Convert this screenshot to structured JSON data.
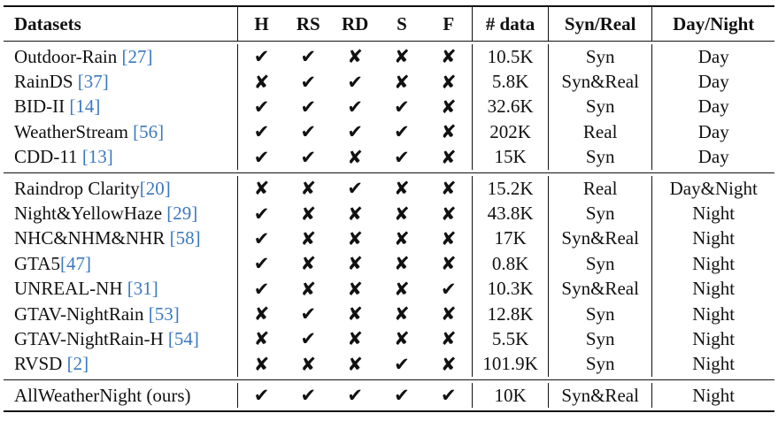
{
  "table": {
    "headers": [
      "Datasets",
      "H",
      "RS",
      "RD",
      "S",
      "F",
      "# data",
      "Syn/Real",
      "Day/Night"
    ],
    "groups": [
      [
        {
          "name": "Outdoor-Rain ",
          "ref": "[27]",
          "marks": [
            true,
            true,
            false,
            false,
            false
          ],
          "data": "10.5K",
          "syn": "Syn",
          "dn": "Day"
        },
        {
          "name": "RainDS ",
          "ref": "[37]",
          "marks": [
            false,
            true,
            true,
            false,
            false
          ],
          "data": "5.8K",
          "syn": "Syn&Real",
          "dn": "Day"
        },
        {
          "name": "BID-II ",
          "ref": "[14]",
          "marks": [
            true,
            true,
            true,
            true,
            false
          ],
          "data": "32.6K",
          "syn": "Syn",
          "dn": "Day"
        },
        {
          "name": "WeatherStream ",
          "ref": "[56]",
          "marks": [
            true,
            true,
            true,
            true,
            false
          ],
          "data": "202K",
          "syn": "Real",
          "dn": "Day"
        },
        {
          "name": "CDD-11 ",
          "ref": "[13]",
          "marks": [
            true,
            true,
            false,
            true,
            false
          ],
          "data": "15K",
          "syn": "Syn",
          "dn": "Day"
        }
      ],
      [
        {
          "name": "Raindrop Clarity",
          "ref": "[20]",
          "marks": [
            false,
            false,
            true,
            false,
            false
          ],
          "data": "15.2K",
          "syn": "Real",
          "dn": "Day&Night"
        },
        {
          "name": "Night&YellowHaze ",
          "ref": "[29]",
          "marks": [
            true,
            false,
            false,
            false,
            false
          ],
          "data": "43.8K",
          "syn": "Syn",
          "dn": "Night"
        },
        {
          "name": "NHC&NHM&NHR ",
          "ref": "[58]",
          "marks": [
            true,
            false,
            false,
            false,
            false
          ],
          "data": "17K",
          "syn": "Syn&Real",
          "dn": "Night"
        },
        {
          "name": "GTA5",
          "ref": "[47]",
          "marks": [
            true,
            false,
            false,
            false,
            false
          ],
          "data": "0.8K",
          "syn": "Syn",
          "dn": "Night"
        },
        {
          "name": "UNREAL-NH ",
          "ref": "[31]",
          "marks": [
            true,
            false,
            false,
            false,
            true
          ],
          "data": "10.3K",
          "syn": "Syn&Real",
          "dn": "Night"
        },
        {
          "name": "GTAV-NightRain ",
          "ref": "[53]",
          "marks": [
            false,
            true,
            false,
            false,
            false
          ],
          "data": "12.8K",
          "syn": "Syn",
          "dn": "Night"
        },
        {
          "name": "GTAV-NightRain-H ",
          "ref": "[54]",
          "marks": [
            false,
            true,
            false,
            false,
            false
          ],
          "data": "5.5K",
          "syn": "Syn",
          "dn": "Night"
        },
        {
          "name": "RVSD ",
          "ref": "[2]",
          "marks": [
            false,
            false,
            false,
            true,
            false
          ],
          "data": "101.9K",
          "syn": "Syn",
          "dn": "Night"
        }
      ],
      [
        {
          "name": "AllWeatherNight (ours)",
          "ref": "",
          "marks": [
            true,
            true,
            true,
            true,
            true
          ],
          "data": "10K",
          "syn": "Syn&Real",
          "dn": "Night"
        }
      ]
    ],
    "mark_glyphs": {
      "yes": "✔",
      "no": "✘"
    }
  }
}
